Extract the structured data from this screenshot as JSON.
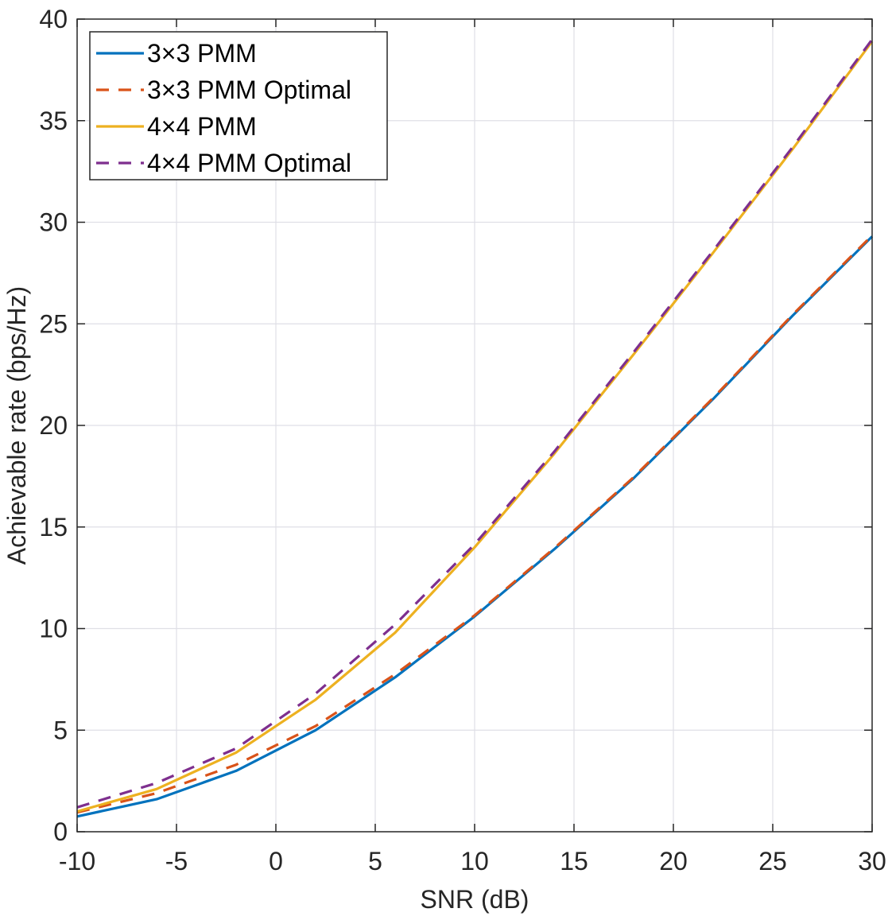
{
  "chart_data": {
    "type": "line",
    "title": "",
    "xlabel": "SNR (dB)",
    "ylabel": "Achievable rate (bps/Hz)",
    "xlim": [
      -10,
      30
    ],
    "ylim": [
      0,
      40
    ],
    "xticks": [
      -10,
      -5,
      0,
      5,
      10,
      15,
      20,
      25,
      30
    ],
    "yticks": [
      0,
      5,
      10,
      15,
      20,
      25,
      30,
      35,
      40
    ],
    "grid": true,
    "legend_position": "top-left",
    "x": [
      -10,
      -6,
      -2,
      2,
      6,
      10,
      14,
      18,
      22,
      26,
      30
    ],
    "series": [
      {
        "name": "3×3 PMM",
        "color": "#0072BD",
        "dash": "solid",
        "values": [
          0.75,
          1.6,
          3.0,
          5.0,
          7.6,
          10.6,
          13.9,
          17.4,
          21.3,
          25.4,
          29.3
        ]
      },
      {
        "name": "3×3 PMM Optimal",
        "color": "#D95319",
        "dash": "dashed",
        "values": [
          0.95,
          1.9,
          3.3,
          5.2,
          7.75,
          10.65,
          13.95,
          17.45,
          21.35,
          25.45,
          29.35
        ]
      },
      {
        "name": "4×4 PMM",
        "color": "#EDB120",
        "dash": "solid",
        "values": [
          1.0,
          2.1,
          3.9,
          6.5,
          9.8,
          14.0,
          18.6,
          23.5,
          28.5,
          33.6,
          38.9
        ]
      },
      {
        "name": "4×4 PMM Optimal",
        "color": "#7E2F8E",
        "dash": "dashed",
        "values": [
          1.2,
          2.4,
          4.1,
          6.8,
          10.2,
          14.15,
          18.7,
          23.6,
          28.6,
          33.7,
          39.0
        ]
      }
    ]
  }
}
